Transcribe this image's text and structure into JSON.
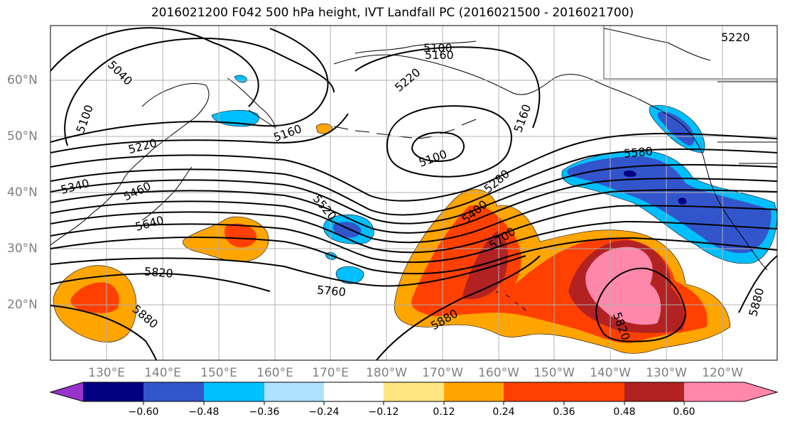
{
  "title": "2016021200 F042 500 hPa height, IVT Landfall PC (2016021500 - 2016021700)",
  "map": {
    "projection": "cylindrical",
    "lon_range": [
      "120°E",
      "115°W"
    ],
    "lat_range": [
      "10°N",
      "70°N"
    ],
    "grid": true,
    "lat_labels": [
      "60°N",
      "50°N",
      "40°N",
      "30°N",
      "20°N"
    ],
    "lon_labels": [
      "130°E",
      "140°E",
      "150°E",
      "160°E",
      "170°E",
      "180°W",
      "170°W",
      "160°W",
      "150°W",
      "140°W",
      "130°W",
      "120°W"
    ],
    "contour_labels": [
      "5040",
      "5100",
      "5100",
      "5160",
      "5220",
      "5160",
      "5100",
      "5220",
      "5220",
      "5160",
      "5340",
      "5460",
      "5580",
      "5640",
      "5520",
      "5400",
      "5280",
      "5700",
      "5820",
      "5760",
      "5880",
      "5880",
      "5820",
      "5880"
    ],
    "land_color": "#ffffff",
    "coastline_color": "#000000",
    "grid_color": "#b0b0b0"
  },
  "colorbar": {
    "colors": [
      "#9933cc",
      "#000080",
      "#3355cc",
      "#00bfff",
      "#b0e0ff",
      "#ffffff",
      "#ffe680",
      "#ffa500",
      "#ff4000",
      "#b22222",
      "#ff88aa"
    ],
    "tick_labels": [
      "−0.60",
      "−0.48",
      "−0.36",
      "−0.24",
      "−0.12",
      "0.12",
      "0.24",
      "0.36",
      "0.48",
      "0.60"
    ],
    "extend": "both"
  }
}
